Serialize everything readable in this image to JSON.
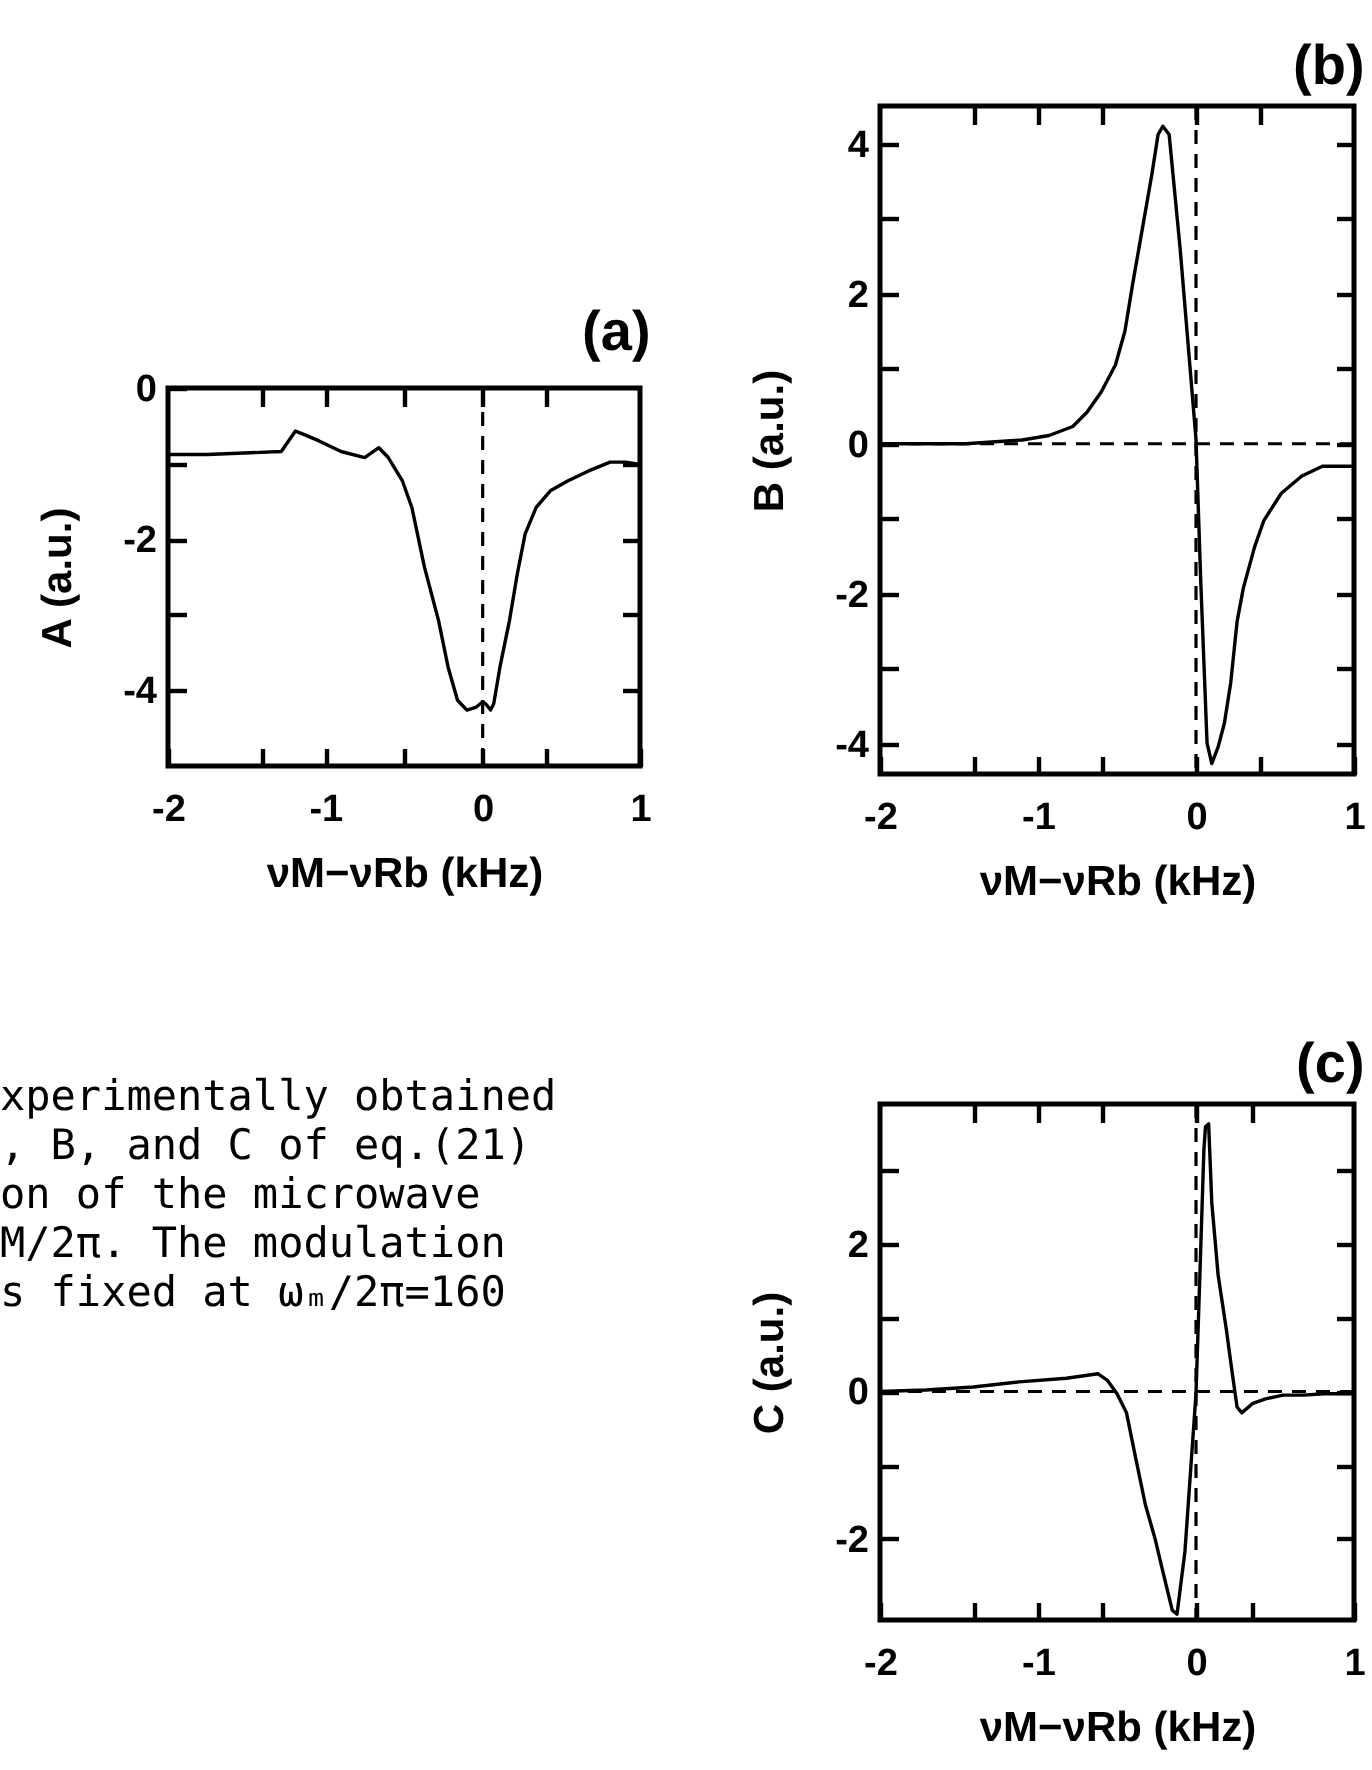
{
  "chart_data": [
    {
      "type": "line",
      "title": "(a)",
      "xlabel": "νM−νRb (kHz)",
      "ylabel": "A (a.u.)",
      "color": "#000000",
      "x": [
        -2,
        -1.75,
        -1.28,
        -1.19,
        -1.13,
        -1.04,
        -0.9,
        -0.75,
        -0.66,
        -0.6,
        -0.51,
        -0.45,
        -0.37,
        -0.28,
        -0.22,
        -0.16,
        -0.1,
        -0.04,
        0,
        0.02,
        0.05,
        0.07,
        0.11,
        0.17,
        0.22,
        0.27,
        0.34,
        0.43,
        0.54,
        0.67,
        0.81,
        0.91,
        1
      ],
      "values": [
        -0.88,
        -0.88,
        -0.84,
        -0.57,
        -0.62,
        -0.7,
        -0.84,
        -0.92,
        -0.79,
        -0.92,
        -1.23,
        -1.58,
        -2.37,
        -3.08,
        -3.69,
        -4.13,
        -4.26,
        -4.22,
        -4.15,
        -4.18,
        -4.26,
        -4.18,
        -3.69,
        -3.08,
        -2.46,
        -1.93,
        -1.58,
        -1.36,
        -1.23,
        -1.1,
        -0.98,
        -0.98,
        -1.01
      ],
      "xlim": [
        -2,
        1
      ],
      "xticks": [
        -2,
        {
          "value": -1.4,
          "label": null
        },
        -1,
        {
          "value": -0.5,
          "label": null
        },
        0,
        {
          "value": 0.4,
          "label": null
        },
        1
      ],
      "ylim": [
        -5,
        0
      ],
      "yticks": [
        -4,
        {
          "value": -3,
          "label": null
        },
        -2,
        {
          "value": -1,
          "label": null
        },
        0
      ],
      "ref_lines": [
        {
          "axis": "x",
          "value": 0,
          "line_style": "dashed",
          "color": "#000000"
        }
      ]
    },
    {
      "type": "line",
      "title": "(b)",
      "xlabel": "νM−νRb (kHz)",
      "ylabel": "B (a.u.)",
      "color": "#000000",
      "x": [
        -2,
        -1.46,
        -1.1,
        -0.93,
        -0.78,
        -0.69,
        -0.6,
        -0.51,
        -0.45,
        -0.4,
        -0.34,
        -0.28,
        -0.24,
        -0.21,
        -0.17,
        -0.1,
        0,
        0.03,
        0.07,
        0.1,
        0.14,
        0.18,
        0.22,
        0.26,
        0.3,
        0.37,
        0.43,
        0.54,
        0.67,
        0.8,
        1
      ],
      "values": [
        0,
        0,
        0.05,
        0.11,
        0.23,
        0.42,
        0.69,
        1.05,
        1.5,
        2.14,
        2.86,
        3.58,
        4.12,
        4.23,
        4.12,
        2.59,
        0.06,
        -1.83,
        -3.99,
        -4.26,
        -4.04,
        -3.72,
        -3.18,
        -2.37,
        -1.92,
        -1.38,
        -1.02,
        -0.66,
        -0.43,
        -0.3,
        -0.3
      ],
      "xlim": [
        -2,
        1
      ],
      "xticks": [
        -2,
        {
          "value": -1.4,
          "label": null
        },
        -1,
        {
          "value": -0.6,
          "label": null
        },
        0,
        {
          "value": 0.4,
          "label": null
        },
        1
      ],
      "ylim": [
        -4.4,
        4.5
      ],
      "yticks": [
        -4,
        {
          "value": -3,
          "label": null
        },
        -2,
        {
          "value": -1,
          "label": null
        },
        0,
        {
          "value": 1,
          "label": null
        },
        2,
        {
          "value": 3,
          "label": null
        },
        4
      ],
      "ref_lines": [
        {
          "axis": "x",
          "value": 0,
          "line_style": "dashed",
          "color": "#000000"
        },
        {
          "axis": "y",
          "value": 0,
          "line_style": "dashed",
          "color": "#000000"
        }
      ]
    },
    {
      "type": "line",
      "title": "(c)",
      "xlabel": "νM−νRb (kHz)",
      "ylabel": "C (a.u.)",
      "color": "#000000",
      "x": [
        -2,
        -1.71,
        -1.41,
        -1.12,
        -0.82,
        -0.62,
        -0.56,
        -0.5,
        -0.44,
        -0.38,
        -0.32,
        -0.26,
        -0.21,
        -0.15,
        -0.12,
        -0.07,
        0,
        0.03,
        0.05,
        0.06,
        0.08,
        0.1,
        0.14,
        0.19,
        0.23,
        0.26,
        0.29,
        0.36,
        0.44,
        0.55,
        0.68,
        0.81,
        1
      ],
      "values": [
        0,
        0.02,
        0.06,
        0.13,
        0.18,
        0.24,
        0.15,
        -0.03,
        -0.29,
        -0.92,
        -1.54,
        -1.99,
        -2.44,
        -2.97,
        -3.02,
        -2.17,
        -0.03,
        1.94,
        3.28,
        3.59,
        3.63,
        2.56,
        1.58,
        0.87,
        0.24,
        -0.21,
        -0.29,
        -0.16,
        -0.1,
        -0.05,
        -0.05,
        -0.03,
        -0.03
      ],
      "xlim": [
        -2,
        1
      ],
      "xticks": [
        -2,
        {
          "value": -1.4,
          "label": null
        },
        -1,
        {
          "value": -0.6,
          "label": null
        },
        0,
        {
          "value": 0.35,
          "label": null
        },
        1
      ],
      "ylim": [
        -3.1,
        3.9
      ],
      "yticks": [
        -2,
        {
          "value": -1,
          "label": null
        },
        0,
        {
          "value": 1,
          "label": null
        },
        2,
        {
          "value": 3,
          "label": null
        }
      ],
      "ref_lines": [
        {
          "axis": "x",
          "value": 0,
          "line_style": "dashed",
          "color": "#000000"
        },
        {
          "axis": "y",
          "value": 0,
          "line_style": "dashed",
          "color": "#000000"
        }
      ]
    },
    {
      "type": "other",
      "annotations": [
        "xperimentally obtained",
        ", B, and C of eq.(21)",
        "on of the microwave",
        "M/2π. The modulation",
        "s fixed at ωₘ/2π=160"
      ]
    }
  ]
}
